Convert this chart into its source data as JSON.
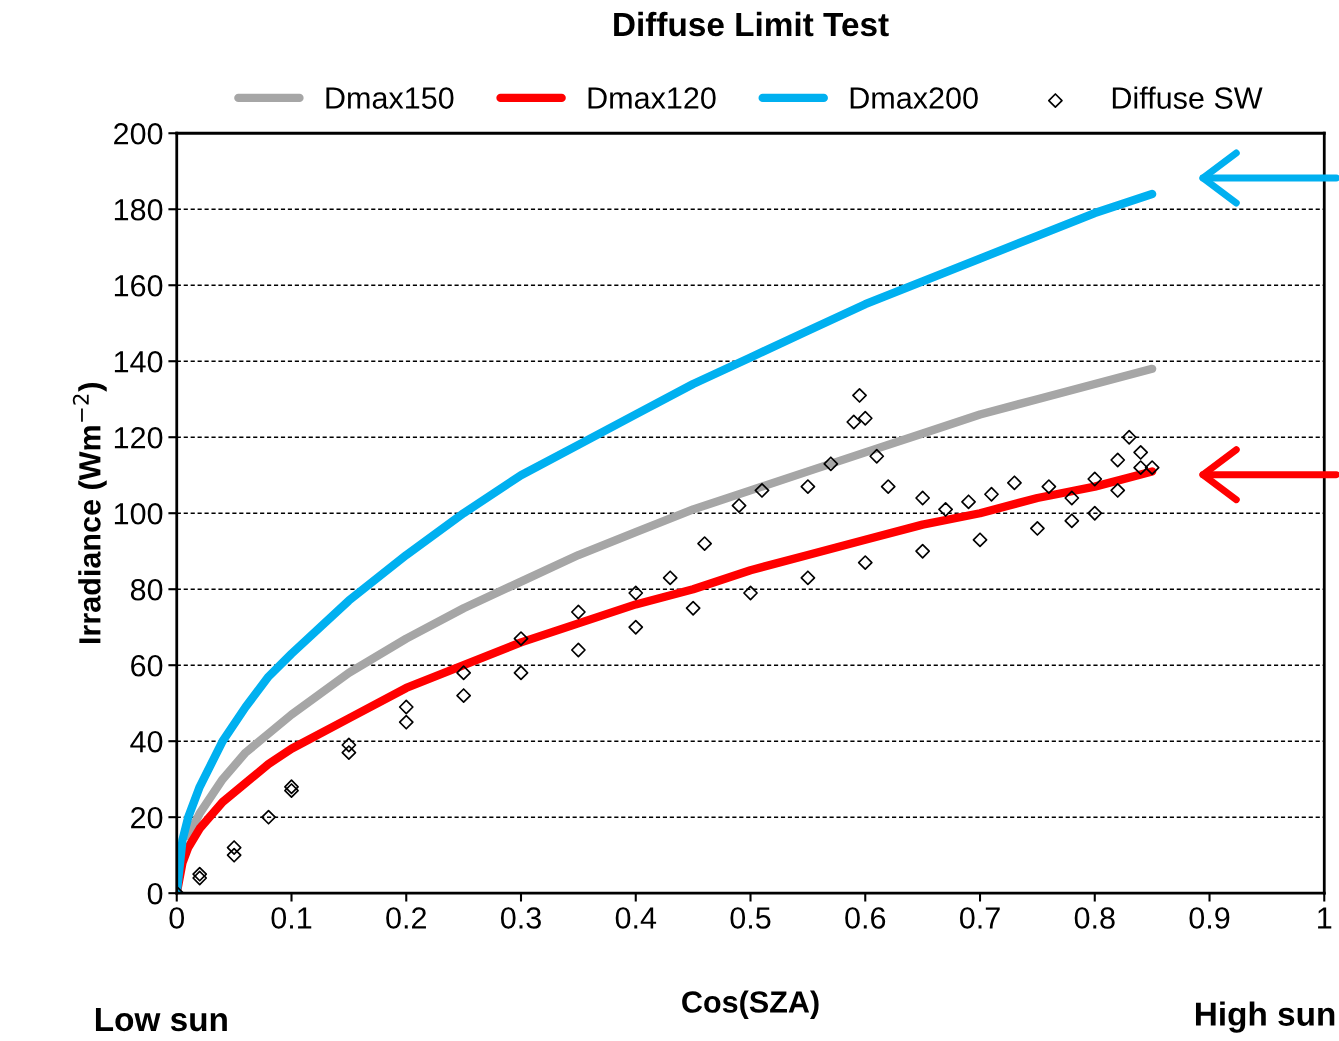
{
  "chart_data": {
    "type": "line",
    "title": "Diffuse Limit Test",
    "xlabel": "Cos(SZA)",
    "ylabel": "Irradiance (Wm$^{−2}$)",
    "xlim": [
      0,
      1
    ],
    "ylim": [
      0,
      200
    ],
    "xticks": [
      0,
      0.1,
      0.2,
      0.3,
      0.4,
      0.5,
      0.6,
      0.7,
      0.8,
      0.9,
      1
    ],
    "yticks": [
      0,
      20,
      40,
      60,
      80,
      100,
      120,
      140,
      160,
      180,
      200
    ],
    "grid": "y",
    "legend": "top",
    "series": [
      {
        "name": "Dmax150",
        "color": "#a6a6a6",
        "marker": "none",
        "x": [
          0.01,
          0.02,
          0.04,
          0.06,
          0.08,
          0.1,
          0.15,
          0.2,
          0.25,
          0.3,
          0.35,
          0.4,
          0.45,
          0.5,
          0.55,
          0.6,
          0.65,
          0.7,
          0.75,
          0.8,
          0.85
        ],
        "values": [
          15,
          21,
          30,
          37,
          42,
          47,
          58,
          67,
          75,
          82,
          89,
          95,
          101,
          106,
          111,
          116,
          121,
          126,
          130,
          134,
          138
        ]
      },
      {
        "name": "Dmax120",
        "color": "#ff0000",
        "marker": "none",
        "x": [
          0,
          0.005,
          0.01,
          0.02,
          0.04,
          0.06,
          0.08,
          0.1,
          0.15,
          0.2,
          0.25,
          0.3,
          0.35,
          0.4,
          0.45,
          0.5,
          0.55,
          0.6,
          0.65,
          0.7,
          0.75,
          0.8,
          0.85
        ],
        "values": [
          0,
          8,
          12,
          17,
          24,
          29,
          34,
          38,
          46,
          54,
          60,
          66,
          71,
          76,
          80,
          85,
          89,
          93,
          97,
          100,
          104,
          107,
          111
        ]
      },
      {
        "name": "Dmax200",
        "color": "#00b0f0",
        "marker": "none",
        "x": [
          0,
          0.005,
          0.01,
          0.02,
          0.04,
          0.06,
          0.08,
          0.1,
          0.15,
          0.2,
          0.25,
          0.3,
          0.35,
          0.4,
          0.45,
          0.5,
          0.55,
          0.6,
          0.65,
          0.7,
          0.75,
          0.8,
          0.85
        ],
        "values": [
          0,
          14,
          20,
          28,
          40,
          49,
          57,
          63,
          77,
          89,
          100,
          110,
          118,
          126,
          134,
          141,
          148,
          155,
          161,
          167,
          173,
          179,
          184
        ]
      },
      {
        "name": "Diffuse SW",
        "type": "scatter",
        "color": "#000000",
        "marker": "diamond",
        "x": [
          0,
          0.02,
          0.05,
          0.08,
          0.1,
          0.15,
          0.2,
          0.25,
          0.3,
          0.35,
          0.4,
          0.45,
          0.5,
          0.55,
          0.6,
          0.65,
          0.7,
          0.75,
          0.78,
          0.8,
          0.82,
          0.84,
          0.02,
          0.05,
          0.1,
          0.15,
          0.2,
          0.25,
          0.3,
          0.35,
          0.4,
          0.43,
          0.46,
          0.49,
          0.51,
          0.55,
          0.57,
          0.59,
          0.595,
          0.6,
          0.61,
          0.62,
          0.65,
          0.67,
          0.69,
          0.71,
          0.73,
          0.76,
          0.78,
          0.8,
          0.82,
          0.83,
          0.84,
          0.85
        ],
        "values": [
          0,
          4,
          10,
          20,
          27,
          37,
          45,
          52,
          58,
          64,
          70,
          75,
          79,
          83,
          87,
          90,
          93,
          96,
          98,
          100,
          106,
          112,
          5,
          12,
          28,
          39,
          49,
          58,
          67,
          74,
          79,
          83,
          92,
          102,
          106,
          107,
          113,
          124,
          131,
          125,
          115,
          107,
          104,
          101,
          103,
          105,
          108,
          107,
          104,
          109,
          114,
          120,
          116,
          112
        ]
      }
    ],
    "annotations": [
      "Low sun",
      "High sun"
    ]
  }
}
